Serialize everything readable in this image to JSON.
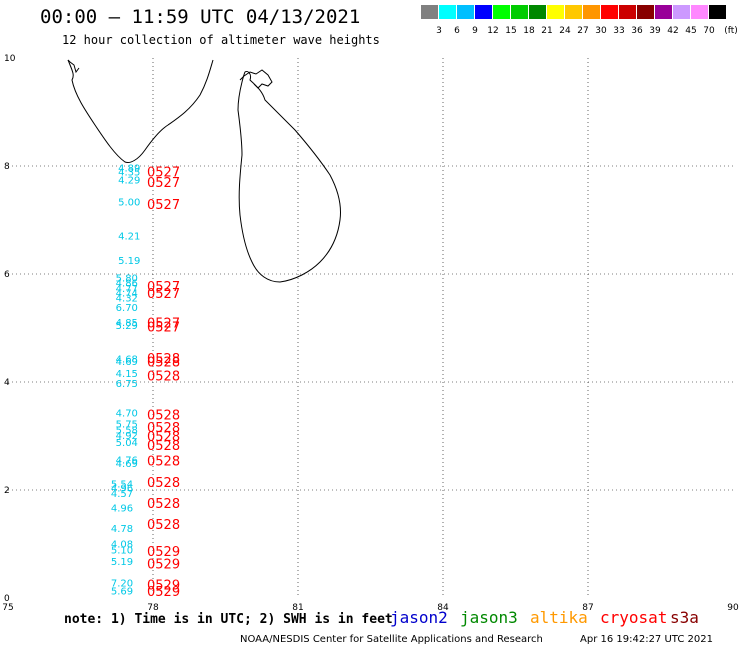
{
  "header": {
    "title": "00:00 – 11:59 UTC 04/13/2021",
    "subtitle": "12 hour collection of altimeter wave heights"
  },
  "colorbar": {
    "unit": "(ft)",
    "colors": [
      "#808080",
      "#00ffff",
      "#00bfff",
      "#0000ff",
      "#00ff00",
      "#00cc00",
      "#008800",
      "#ffff00",
      "#ffc800",
      "#ff9600",
      "#ff0000",
      "#cc0000",
      "#880000",
      "#990099",
      "#cc99ff",
      "#ff88ff",
      "#000000"
    ],
    "ticks": [
      "3",
      "6",
      "9",
      "12",
      "15",
      "18",
      "21",
      "24",
      "27",
      "30",
      "33",
      "36",
      "39",
      "42",
      "45",
      "70"
    ]
  },
  "map": {
    "x_ticks": [
      "75",
      "78",
      "81",
      "84",
      "87",
      "90"
    ],
    "y_ticks": [
      "0",
      "2",
      "4",
      "6",
      "8",
      "10"
    ],
    "lon_range": [
      75,
      90
    ],
    "lat_range": [
      0,
      10
    ]
  },
  "observations": [
    {
      "swh": "4.89",
      "lat": 7.95,
      "lon": 77.65
    },
    {
      "swh": "4.35",
      "lat": 7.88,
      "lon": 77.65
    },
    {
      "swh": "4.29",
      "lat": 7.73,
      "lon": 77.65
    },
    {
      "swh": "5.00",
      "lat": 7.32,
      "lon": 77.65
    },
    {
      "swh": "4.21",
      "lat": 6.69,
      "lon": 77.65
    },
    {
      "swh": "5.19",
      "lat": 6.24,
      "lon": 77.65
    },
    {
      "swh": "5.80",
      "lat": 5.92,
      "lon": 77.6
    },
    {
      "swh": "4.86",
      "lat": 5.82,
      "lon": 77.6
    },
    {
      "swh": "4.77",
      "lat": 5.72,
      "lon": 77.6
    },
    {
      "swh": "4.74",
      "lat": 5.64,
      "lon": 77.6
    },
    {
      "swh": "4.32",
      "lat": 5.55,
      "lon": 77.6
    },
    {
      "swh": "6.70",
      "lat": 5.37,
      "lon": 77.6
    },
    {
      "swh": "4.85",
      "lat": 5.09,
      "lon": 77.6
    },
    {
      "swh": "5.29",
      "lat": 5.04,
      "lon": 77.6
    },
    {
      "swh": "4.68",
      "lat": 4.42,
      "lon": 77.6
    },
    {
      "swh": "4.69",
      "lat": 4.37,
      "lon": 77.6
    },
    {
      "swh": "4.15",
      "lat": 4.15,
      "lon": 77.6
    },
    {
      "swh": "6.75",
      "lat": 3.96,
      "lon": 77.6
    },
    {
      "swh": "4.70",
      "lat": 3.42,
      "lon": 77.6
    },
    {
      "swh": "5.75",
      "lat": 3.21,
      "lon": 77.6
    },
    {
      "swh": "5.58",
      "lat": 3.1,
      "lon": 77.6
    },
    {
      "swh": "4.92",
      "lat": 3.0,
      "lon": 77.6
    },
    {
      "swh": "5.04",
      "lat": 2.87,
      "lon": 77.6
    },
    {
      "swh": "4.76",
      "lat": 2.55,
      "lon": 77.6
    },
    {
      "swh": "4.69",
      "lat": 2.48,
      "lon": 77.6
    },
    {
      "swh": "5.54",
      "lat": 2.1,
      "lon": 77.5
    },
    {
      "swh": "4.96",
      "lat": 2.03,
      "lon": 77.5
    },
    {
      "swh": "4.57",
      "lat": 1.93,
      "lon": 77.5
    },
    {
      "swh": "4.96",
      "lat": 1.66,
      "lon": 77.5
    },
    {
      "swh": "4.78",
      "lat": 1.28,
      "lon": 77.5
    },
    {
      "swh": "4.08",
      "lat": 0.99,
      "lon": 77.5
    },
    {
      "swh": "5.10",
      "lat": 0.88,
      "lon": 77.5
    },
    {
      "swh": "5.19",
      "lat": 0.67,
      "lon": 77.5
    },
    {
      "swh": "7.20",
      "lat": 0.27,
      "lon": 77.5
    },
    {
      "swh": "5.69",
      "lat": 0.12,
      "lon": 77.5
    }
  ],
  "time_labels": [
    {
      "text": "0527",
      "lat": 7.9
    },
    {
      "text": "0527",
      "lat": 7.7
    },
    {
      "text": "0527",
      "lat": 7.3
    },
    {
      "text": "0527",
      "lat": 5.78
    },
    {
      "text": "0527",
      "lat": 5.65
    },
    {
      "text": "0527",
      "lat": 5.1
    },
    {
      "text": "0527",
      "lat": 5.03
    },
    {
      "text": "0528",
      "lat": 4.44
    },
    {
      "text": "0528",
      "lat": 4.38
    },
    {
      "text": "0528",
      "lat": 4.12
    },
    {
      "text": "0528",
      "lat": 3.4
    },
    {
      "text": "0528",
      "lat": 3.17
    },
    {
      "text": "0528",
      "lat": 3.0
    },
    {
      "text": "0528",
      "lat": 2.83
    },
    {
      "text": "0528",
      "lat": 2.55
    },
    {
      "text": "0528",
      "lat": 2.15
    },
    {
      "text": "0528",
      "lat": 1.76
    },
    {
      "text": "0528",
      "lat": 1.37
    },
    {
      "text": "0529",
      "lat": 0.87
    },
    {
      "text": "0529",
      "lat": 0.64
    },
    {
      "text": "0529",
      "lat": 0.25
    },
    {
      "text": "0529",
      "lat": 0.13
    }
  ],
  "footer": {
    "note": "note: 1) Time is in UTC; 2) SWH is in feet",
    "satellites": [
      {
        "name": "jason2",
        "color": "#0000cc"
      },
      {
        "name": "jason3",
        "color": "#008800"
      },
      {
        "name": "altika",
        "color": "#ff9900"
      },
      {
        "name": "cryosat",
        "color": "#ff0000"
      },
      {
        "name": "s3a",
        "color": "#880000"
      }
    ],
    "credit": "NOAA/NESDIS Center for Satellite Applications and Research",
    "timestamp": "Apr 16 19:42:27 UTC 2021"
  }
}
